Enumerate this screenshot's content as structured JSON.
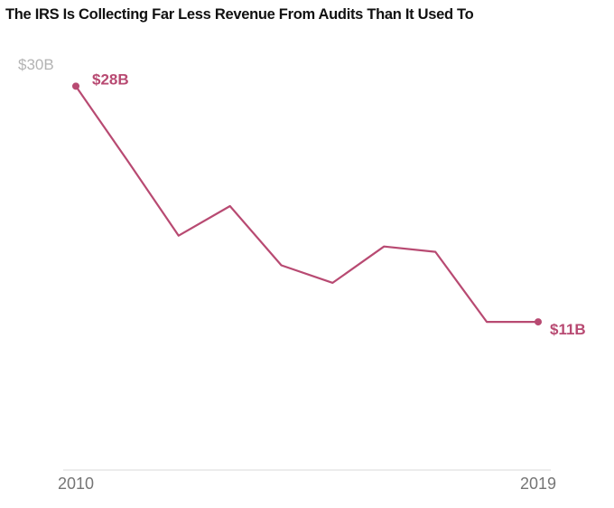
{
  "chart_data": {
    "type": "line",
    "title": "The IRS Is Collecting Far Less Revenue From Audits Than It Used To",
    "x": [
      2010,
      2011,
      2012,
      2013,
      2014,
      2015,
      2016,
      2017,
      2018,
      2019
    ],
    "series": [
      {
        "values": [
          28.5,
          23.0,
          17.4,
          19.6,
          15.2,
          13.9,
          16.6,
          16.2,
          11.0,
          11.0
        ]
      }
    ],
    "x_tick_labels": [
      "2010",
      "2019"
    ],
    "y_tick_labels": [
      "$30B"
    ],
    "data_labels": [
      "$28B",
      "$11B"
    ],
    "ylim": [
      0,
      30
    ],
    "xlim": [
      2010,
      2019
    ],
    "grid": false,
    "line_color": "#b84a72",
    "axis_color": "#d9d9d9"
  }
}
